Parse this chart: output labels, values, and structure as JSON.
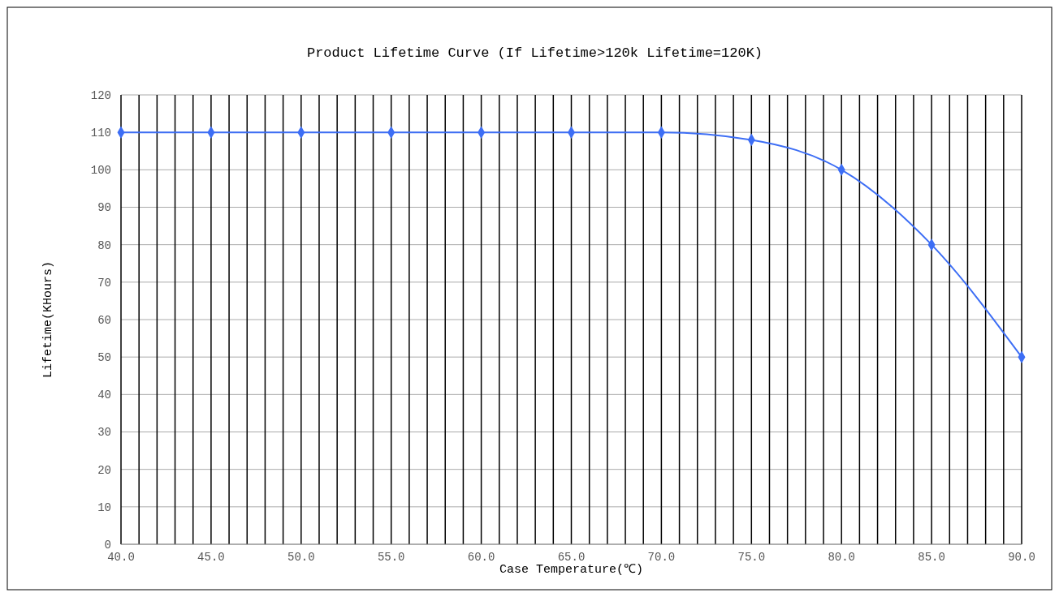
{
  "chart_data": {
    "type": "line",
    "title": "Product Lifetime Curve (If Lifetime>120k Lifetime=120K)",
    "xlabel": "Case Temperature(℃)",
    "ylabel": "Lifetime(KHours)",
    "x": [
      40,
      45,
      50,
      55,
      60,
      65,
      70,
      75,
      80,
      85,
      90
    ],
    "series": [
      {
        "color": "#3d6ef5",
        "values": [
          110,
          110,
          110,
          110,
          110,
          110,
          110,
          108,
          100,
          80,
          50
        ]
      }
    ],
    "xlim": [
      40,
      90
    ],
    "xticks": [
      {
        "value": 40,
        "label": "40.0"
      },
      {
        "value": 41,
        "label": null
      },
      {
        "value": 42,
        "label": null
      },
      {
        "value": 43,
        "label": null
      },
      {
        "value": 44,
        "label": null
      },
      {
        "value": 45,
        "label": "45.0"
      },
      {
        "value": 46,
        "label": null
      },
      {
        "value": 47,
        "label": null
      },
      {
        "value": 48,
        "label": null
      },
      {
        "value": 49,
        "label": null
      },
      {
        "value": 50,
        "label": "50.0"
      },
      {
        "value": 51,
        "label": null
      },
      {
        "value": 52,
        "label": null
      },
      {
        "value": 53,
        "label": null
      },
      {
        "value": 54,
        "label": null
      },
      {
        "value": 55,
        "label": "55.0"
      },
      {
        "value": 56,
        "label": null
      },
      {
        "value": 57,
        "label": null
      },
      {
        "value": 58,
        "label": null
      },
      {
        "value": 59,
        "label": null
      },
      {
        "value": 60,
        "label": "60.0"
      },
      {
        "value": 61,
        "label": null
      },
      {
        "value": 62,
        "label": null
      },
      {
        "value": 63,
        "label": null
      },
      {
        "value": 64,
        "label": null
      },
      {
        "value": 65,
        "label": "65.0"
      },
      {
        "value": 66,
        "label": null
      },
      {
        "value": 67,
        "label": null
      },
      {
        "value": 68,
        "label": null
      },
      {
        "value": 69,
        "label": null
      },
      {
        "value": 70,
        "label": "70.0"
      },
      {
        "value": 71,
        "label": null
      },
      {
        "value": 72,
        "label": null
      },
      {
        "value": 73,
        "label": null
      },
      {
        "value": 74,
        "label": null
      },
      {
        "value": 75,
        "label": "75.0"
      },
      {
        "value": 76,
        "label": null
      },
      {
        "value": 77,
        "label": null
      },
      {
        "value": 78,
        "label": null
      },
      {
        "value": 79,
        "label": null
      },
      {
        "value": 80,
        "label": "80.0"
      },
      {
        "value": 81,
        "label": null
      },
      {
        "value": 82,
        "label": null
      },
      {
        "value": 83,
        "label": null
      },
      {
        "value": 84,
        "label": null
      },
      {
        "value": 85,
        "label": "85.0"
      },
      {
        "value": 86,
        "label": null
      },
      {
        "value": 87,
        "label": null
      },
      {
        "value": 88,
        "label": null
      },
      {
        "value": 89,
        "label": null
      },
      {
        "value": 90,
        "label": "90.0"
      }
    ],
    "ylim": [
      0,
      120
    ],
    "yticks": [
      0,
      10,
      20,
      30,
      40,
      50,
      60,
      70,
      80,
      90,
      100,
      110,
      120
    ],
    "grid": true,
    "marker": "diamond",
    "line_style": "solid"
  }
}
